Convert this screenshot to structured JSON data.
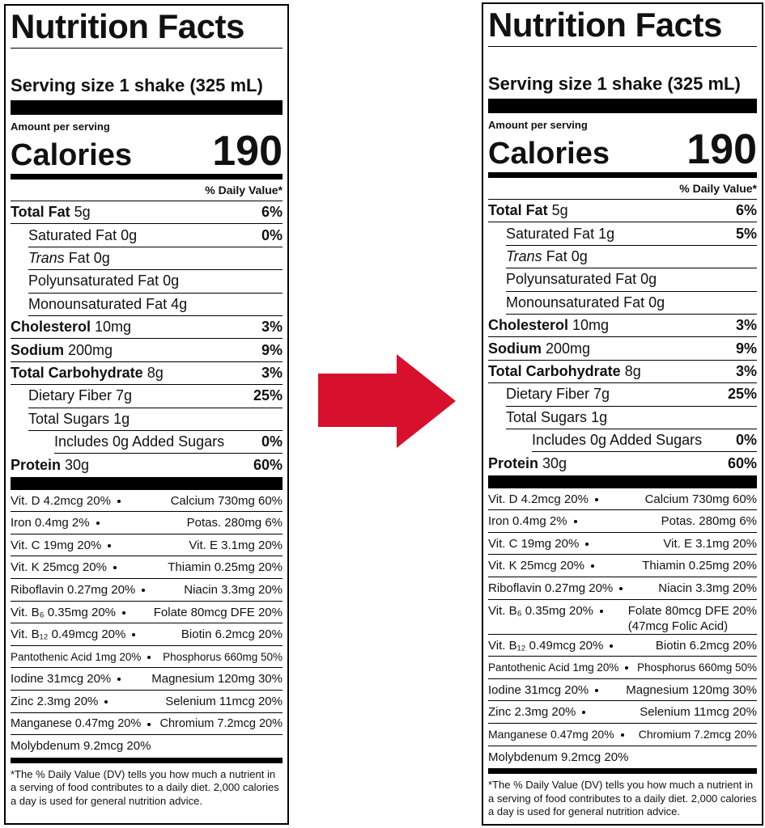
{
  "labels": [
    {
      "title": "Nutrition Facts",
      "serving": "Serving size 1 shake (325 mL)",
      "amount_per_serving": "Amount per serving",
      "calories_label": "Calories",
      "calories": 190,
      "dv_header": "% Daily Value*",
      "nutrients": [
        {
          "name": "Total Fat",
          "amount": "5g",
          "dv": "6%"
        },
        {
          "name": "Saturated Fat",
          "amount": "0g",
          "dv": "0%"
        },
        {
          "name": "Trans",
          "amount": "Fat 0g"
        },
        {
          "name": "Polyunsaturated Fat",
          "amount": "0g"
        },
        {
          "name": "Monounsaturated Fat",
          "amount": "4g"
        },
        {
          "name": "Cholesterol",
          "amount": "10mg",
          "dv": "3%"
        },
        {
          "name": "Sodium",
          "amount": "200mg",
          "dv": "9%"
        },
        {
          "name": "Total Carbohydrate",
          "amount": "8g",
          "dv": "3%"
        },
        {
          "name": "Dietary Fiber",
          "amount": "7g",
          "dv": "25%"
        },
        {
          "name": "Total Sugars",
          "amount": "1g"
        },
        {
          "name": "Includes 0g Added Sugars",
          "dv": "0%"
        },
        {
          "name": "Protein",
          "amount": "30g",
          "dv": "60%"
        }
      ],
      "vitamins": [
        {
          "left": "Vit. D 4.2mcg 20%",
          "right": "Calcium 730mg 60%"
        },
        {
          "left": "Iron 0.4mg 2%",
          "right": "Potas. 280mg 6%"
        },
        {
          "left": "Vit. C 19mg 20%",
          "right": "Vit. E 3.1mg 20%"
        },
        {
          "left": "Vit. K 25mcg 20%",
          "right": "Thiamin 0.25mg 20%"
        },
        {
          "left": "Riboflavin 0.27mg 20%",
          "right": "Niacin 3.3mg 20%"
        },
        {
          "left": "Vit. B₆ 0.35mg 20%",
          "right": "Folate 80mcg DFE 20%"
        },
        {
          "left": "Vit. B₁₂ 0.49mcg 20%",
          "right": "Biotin 6.2mcg 20%"
        },
        {
          "left": "Pantothenic Acid 1mg 20%",
          "right": "Phosphorus 660mg 50%"
        },
        {
          "left": "Iodine 31mcg 20%",
          "right": "Magnesium 120mg 30%"
        },
        {
          "left": "Zinc 2.3mg 20%",
          "right": "Selenium 11mcg 20%"
        },
        {
          "left": "Manganese 0.47mg 20%",
          "right": "Chromium 7.2mcg 20%"
        },
        {
          "left": "Molybdenum 9.2mcg 20%"
        }
      ],
      "footnote": "*The % Daily Value (DV) tells you how much a nutrient in a serving of food contributes to a daily diet. 2,000 calories a day is used for general nutrition advice."
    },
    {
      "title": "Nutrition Facts",
      "serving": "Serving size 1 shake (325 mL)",
      "amount_per_serving": "Amount per serving",
      "calories_label": "Calories",
      "calories": 190,
      "dv_header": "% Daily Value*",
      "nutrients": [
        {
          "name": "Total Fat",
          "amount": "5g",
          "dv": "6%"
        },
        {
          "name": "Saturated Fat",
          "amount": "1g",
          "dv": "5%"
        },
        {
          "name": "Trans",
          "amount": "Fat 0g"
        },
        {
          "name": "Polyunsaturated Fat",
          "amount": "0g"
        },
        {
          "name": "Monounsaturated Fat",
          "amount": "0g"
        },
        {
          "name": "Cholesterol",
          "amount": "10mg",
          "dv": "3%"
        },
        {
          "name": "Sodium",
          "amount": "200mg",
          "dv": "9%"
        },
        {
          "name": "Total Carbohydrate",
          "amount": "8g",
          "dv": "3%"
        },
        {
          "name": "Dietary Fiber",
          "amount": "7g",
          "dv": "25%"
        },
        {
          "name": "Total Sugars",
          "amount": "1g"
        },
        {
          "name": "Includes 0g Added Sugars",
          "dv": "0%"
        },
        {
          "name": "Protein",
          "amount": "30g",
          "dv": "60%"
        }
      ],
      "vitamins": [
        {
          "left": "Vit. D 4.2mcg 20%",
          "right": "Calcium 730mg 60%"
        },
        {
          "left": "Iron 0.4mg 2%",
          "right": "Potas. 280mg 6%"
        },
        {
          "left": "Vit. C 19mg 20%",
          "right": "Vit. E 3.1mg 20%"
        },
        {
          "left": "Vit. K 25mcg 20%",
          "right": "Thiamin 0.25mg 20%"
        },
        {
          "left": "Riboflavin 0.27mg 20%",
          "right": "Niacin 3.3mg 20%"
        },
        {
          "left": "Vit. B₆ 0.35mg 20%",
          "right": "Folate 80mcg DFE 20%",
          "note": "(47mcg Folic Acid)"
        },
        {
          "left": "Vit. B₁₂ 0.49mcg 20%",
          "right": "Biotin 6.2mcg 20%"
        },
        {
          "left": "Pantothenic Acid 1mg 20%",
          "right": "Phosphorus 660mg 50%"
        },
        {
          "left": "Iodine 31mcg 20%",
          "right": "Magnesium 120mg 30%"
        },
        {
          "left": "Zinc 2.3mg 20%",
          "right": "Selenium 11mcg 20%"
        },
        {
          "left": "Manganese 0.47mg 20%",
          "right": "Chromium 7.2mcg 20%"
        },
        {
          "left": "Molybdenum 9.2mcg 20%"
        }
      ],
      "footnote": "*The % Daily Value (DV) tells you how much a nutrient in a serving of food contributes to a daily diet. 2,000 calories a day is used for general nutrition advice."
    }
  ]
}
